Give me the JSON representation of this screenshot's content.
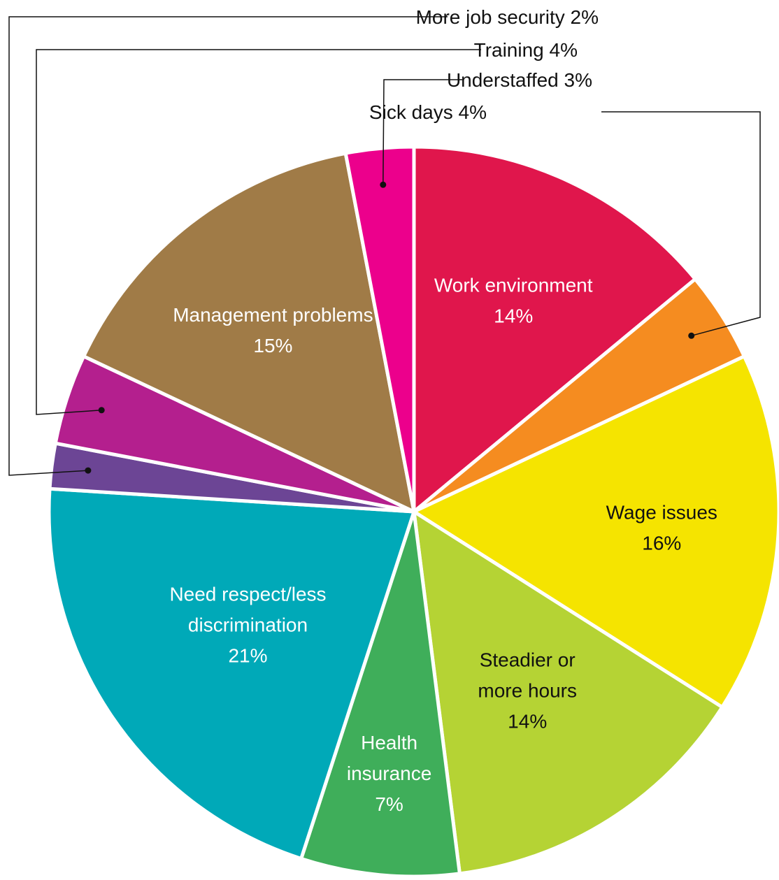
{
  "chart_data": {
    "type": "pie",
    "start": "12 o'clock",
    "direction": "clockwise",
    "slices": [
      {
        "label": "Work environment",
        "value": 14,
        "value_label": "14%",
        "color": "#e0164c",
        "text_color": "#ffffff"
      },
      {
        "label": "Sick days",
        "value": 4,
        "value_label": "4%",
        "color": "#f58c20"
      },
      {
        "label": "Wage issues",
        "value": 16,
        "value_label": "16%",
        "color": "#f5e400",
        "text_color": "#111111"
      },
      {
        "label": "Steadier or more hours",
        "value": 14,
        "value_label": "14%",
        "color": "#b5d334",
        "text_color": "#111111"
      },
      {
        "label": "Health insurance",
        "value": 7,
        "value_label": "7%",
        "color": "#3fae5a",
        "text_color": "#ffffff"
      },
      {
        "label": "Need respect/less discrimination",
        "value": 21,
        "value_label": "21%",
        "color": "#00a9b8",
        "text_color": "#ffffff"
      },
      {
        "label": "More job security",
        "value": 2,
        "value_label": "2%",
        "color": "#6c4595"
      },
      {
        "label": "Training",
        "value": 4,
        "value_label": "4%",
        "color": "#b41f8e"
      },
      {
        "label": "Management problems",
        "value": 15,
        "value_label": "15%",
        "color": "#a07b47",
        "text_color": "#ffffff"
      },
      {
        "label": "Understaffed",
        "value": 3,
        "value_label": "3%",
        "color": "#ec008c"
      }
    ]
  }
}
